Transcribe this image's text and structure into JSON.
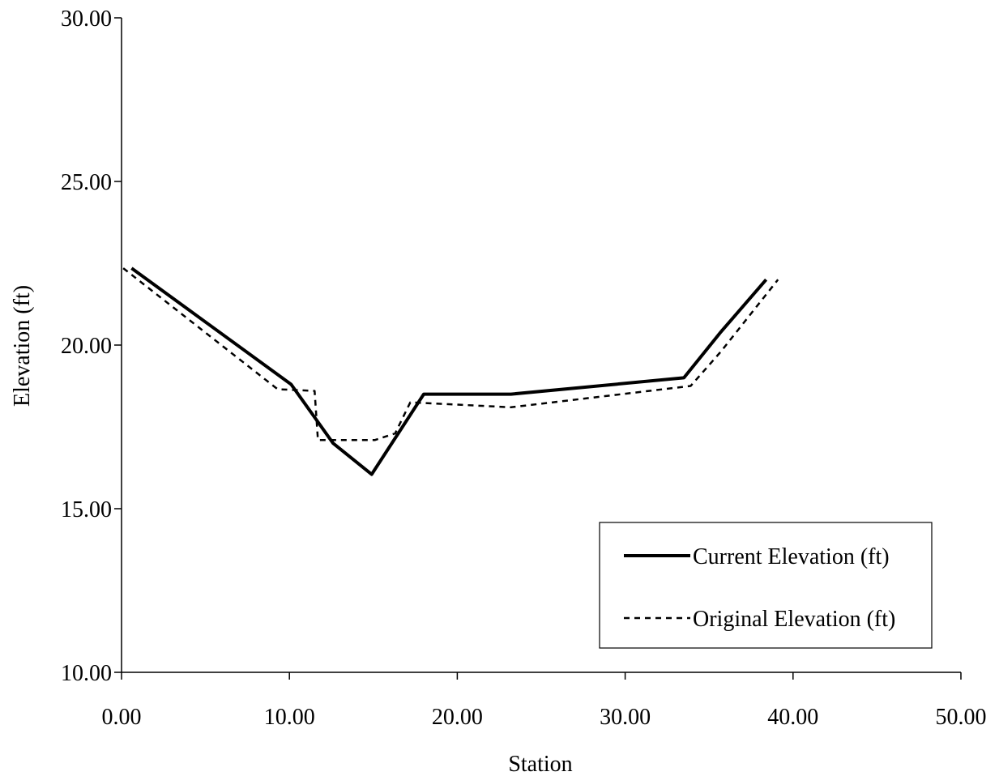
{
  "chart_data": {
    "type": "line",
    "title": "",
    "xlabel": "Station",
    "ylabel": "Elevation (ft)",
    "xlim": [
      0,
      50
    ],
    "ylim": [
      10,
      30
    ],
    "x_ticks": [
      0,
      10,
      20,
      30,
      40,
      50
    ],
    "y_ticks": [
      10,
      15,
      20,
      25,
      30
    ],
    "x_tick_labels": [
      "0.00",
      "10.00",
      "20.00",
      "30.00",
      "40.00",
      "50.00"
    ],
    "y_tick_labels": [
      "10.00",
      "15.00",
      "20.00",
      "25.00",
      "30.00"
    ],
    "grid": false,
    "legend_position": "bottom-right",
    "series": [
      {
        "name": "Current Elevation (ft)",
        "style": "solid",
        "color": "#000000",
        "points": [
          [
            0.6,
            22.35
          ],
          [
            10.1,
            18.8
          ],
          [
            12.6,
            17.0
          ],
          [
            14.9,
            16.05
          ],
          [
            18.0,
            18.5
          ],
          [
            23.2,
            18.5
          ],
          [
            33.5,
            19.0
          ],
          [
            35.7,
            20.4
          ],
          [
            38.4,
            22.0
          ]
        ]
      },
      {
        "name": "Original Elevation (ft)",
        "style": "dashed",
        "color": "#000000",
        "points": [
          [
            0.1,
            22.35
          ],
          [
            9.3,
            18.65
          ],
          [
            11.5,
            18.6
          ],
          [
            11.7,
            17.1
          ],
          [
            15.1,
            17.1
          ],
          [
            16.3,
            17.3
          ],
          [
            17.2,
            18.25
          ],
          [
            23.2,
            18.1
          ],
          [
            33.9,
            18.75
          ],
          [
            35.7,
            19.8
          ],
          [
            39.1,
            22.0
          ]
        ]
      }
    ]
  }
}
